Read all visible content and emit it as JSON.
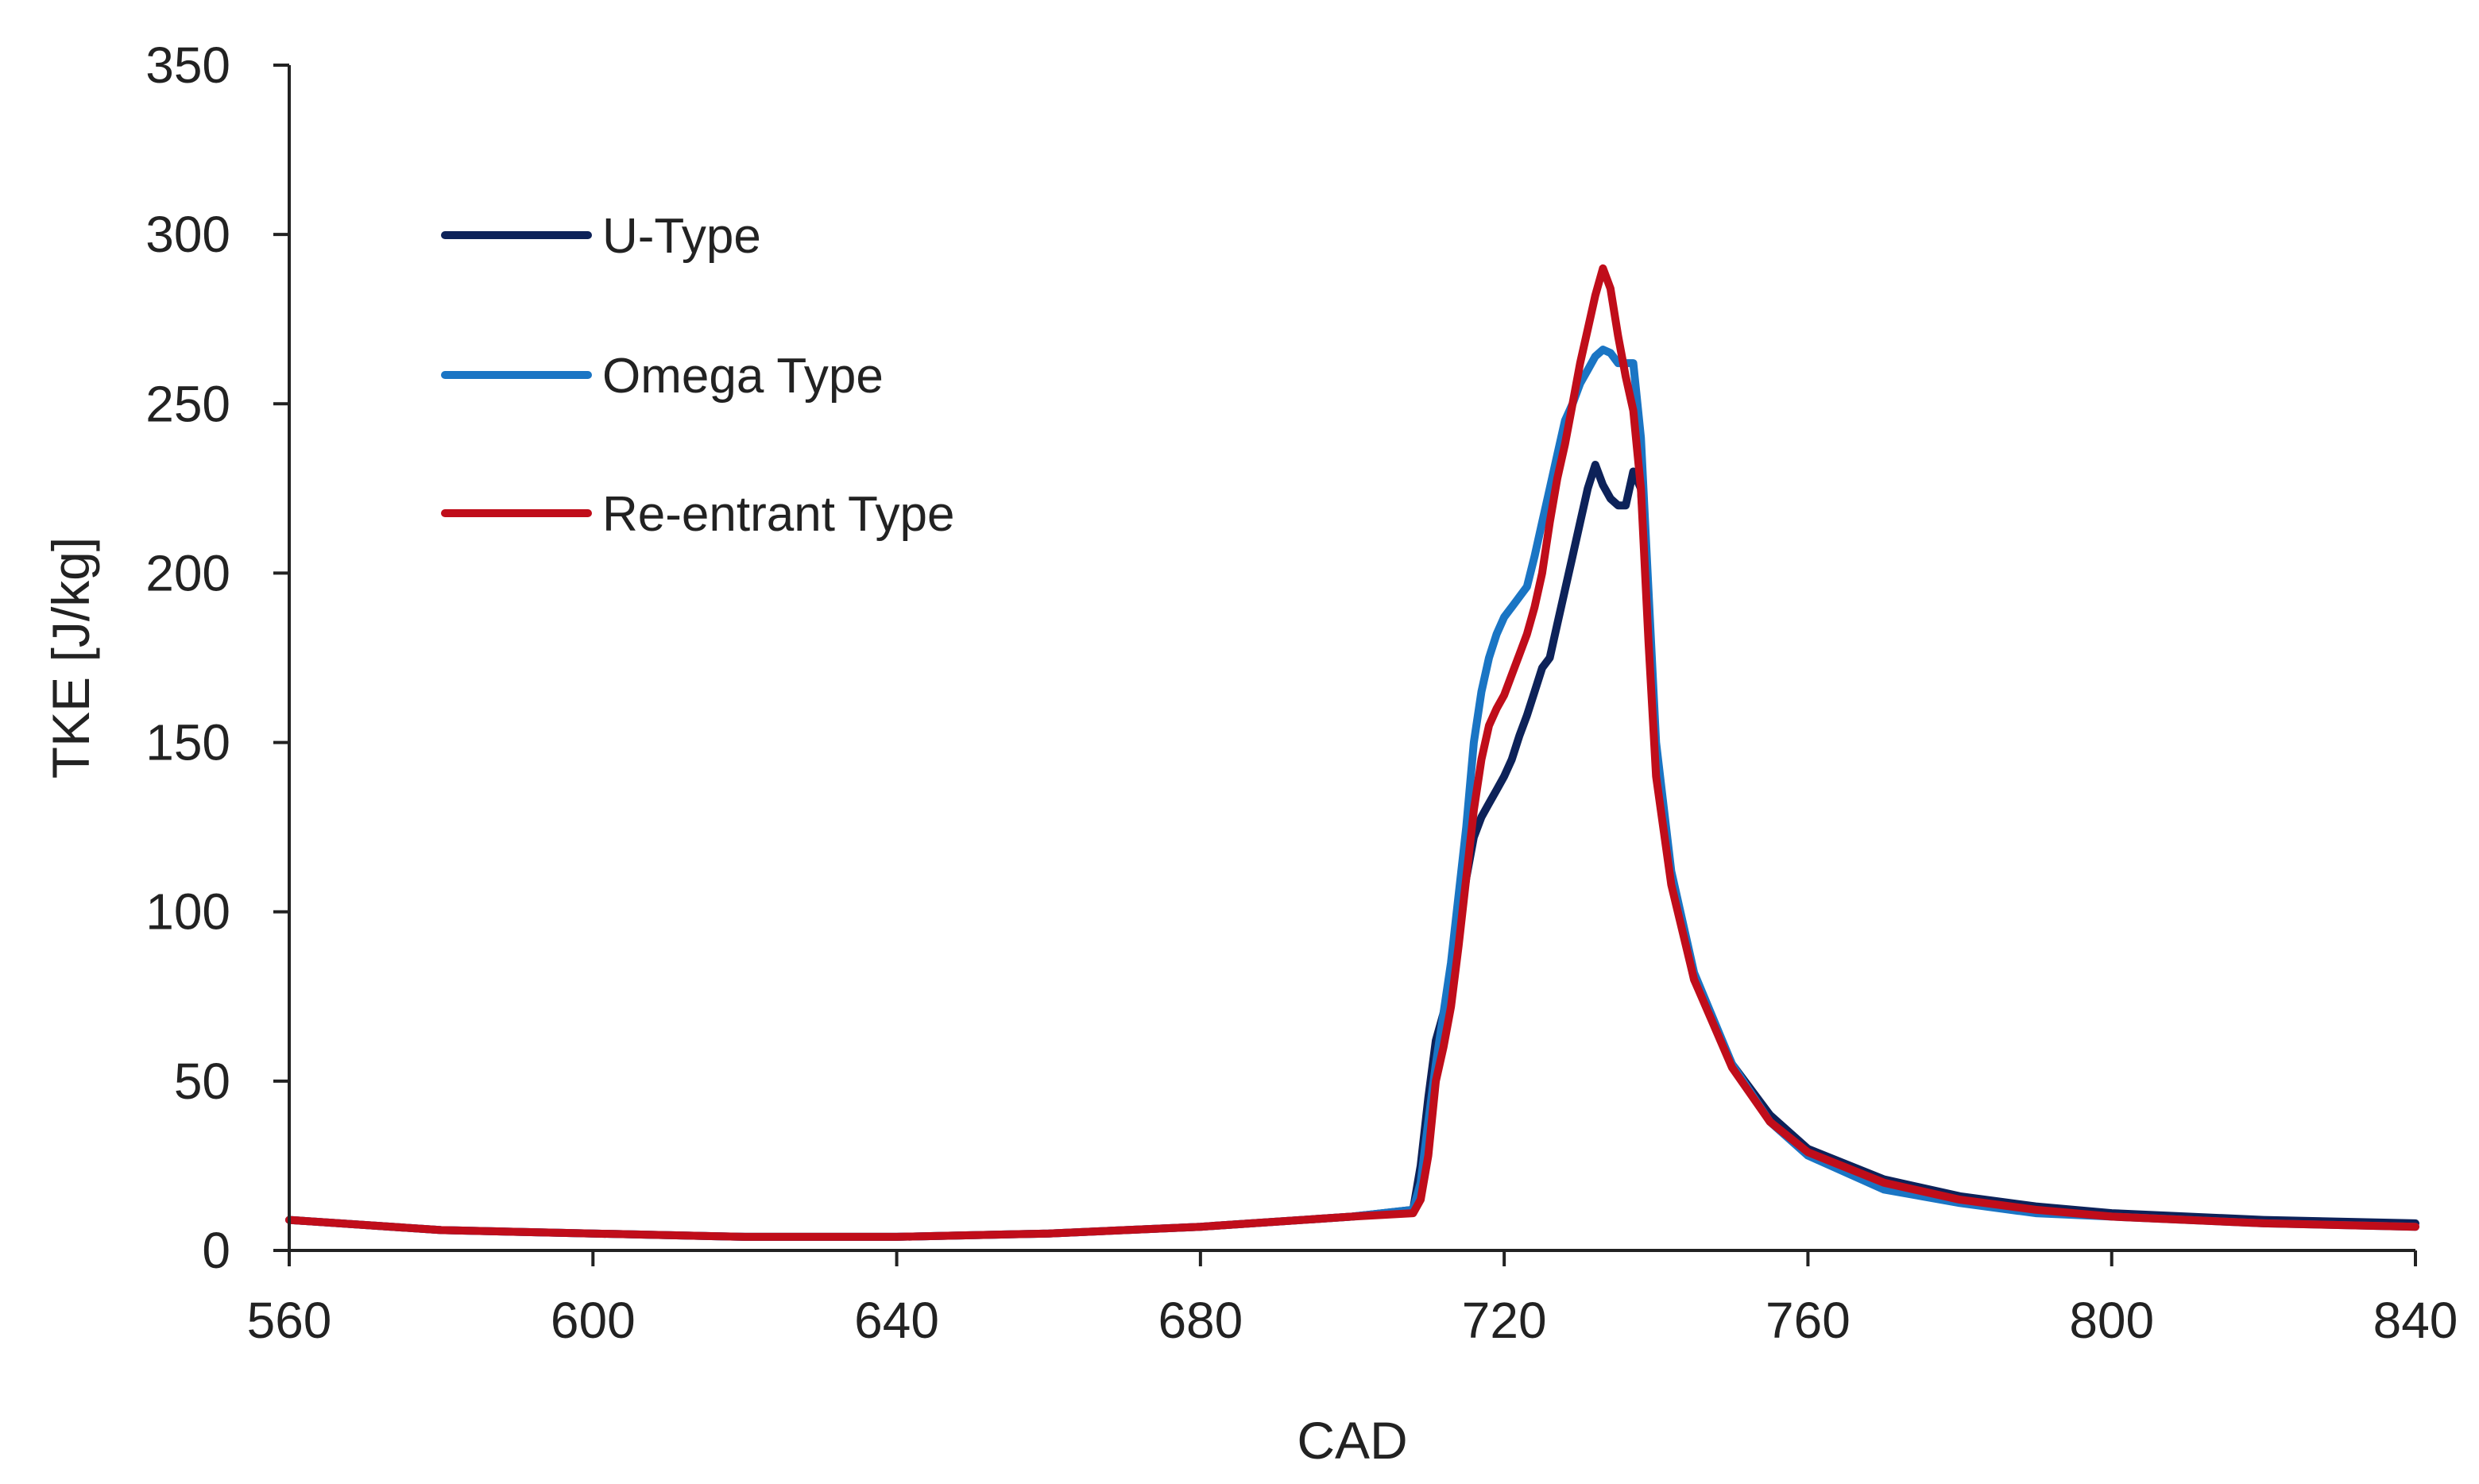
{
  "chart_data": {
    "type": "line",
    "title": "",
    "xlabel": "CAD",
    "ylabel": "TKE [J/kg]",
    "xlim": [
      560,
      840
    ],
    "ylim": [
      0,
      350
    ],
    "x_ticks": [
      560,
      600,
      640,
      680,
      720,
      760,
      800,
      840
    ],
    "y_ticks": [
      0,
      50,
      100,
      150,
      200,
      250,
      300,
      350
    ],
    "grid": false,
    "legend": "upper-left",
    "series": [
      {
        "name": "U-Type",
        "color": "#0d2259",
        "points": [
          [
            560,
            9
          ],
          [
            580,
            6
          ],
          [
            600,
            5
          ],
          [
            620,
            4
          ],
          [
            640,
            4
          ],
          [
            660,
            5
          ],
          [
            680,
            7
          ],
          [
            700,
            10
          ],
          [
            708,
            12
          ],
          [
            709,
            25
          ],
          [
            710,
            45
          ],
          [
            711,
            62
          ],
          [
            712,
            70
          ],
          [
            713,
            80
          ],
          [
            714,
            95
          ],
          [
            715,
            110
          ],
          [
            716,
            122
          ],
          [
            717,
            128
          ],
          [
            718,
            132
          ],
          [
            719,
            136
          ],
          [
            720,
            140
          ],
          [
            721,
            145
          ],
          [
            722,
            152
          ],
          [
            723,
            158
          ],
          [
            724,
            165
          ],
          [
            725,
            172
          ],
          [
            726,
            175
          ],
          [
            727,
            185
          ],
          [
            728,
            195
          ],
          [
            729,
            205
          ],
          [
            730,
            215
          ],
          [
            731,
            225
          ],
          [
            732,
            232
          ],
          [
            733,
            226
          ],
          [
            734,
            222
          ],
          [
            735,
            220
          ],
          [
            736,
            220
          ],
          [
            737,
            230
          ],
          [
            738,
            225
          ],
          [
            739,
            190
          ],
          [
            740,
            145
          ],
          [
            742,
            110
          ],
          [
            745,
            80
          ],
          [
            750,
            55
          ],
          [
            755,
            40
          ],
          [
            760,
            30
          ],
          [
            770,
            21
          ],
          [
            780,
            16
          ],
          [
            790,
            13
          ],
          [
            800,
            11
          ],
          [
            820,
            9
          ],
          [
            840,
            8
          ]
        ]
      },
      {
        "name": "Omega Type",
        "color": "#1a75c4",
        "points": [
          [
            560,
            9
          ],
          [
            580,
            6
          ],
          [
            600,
            5
          ],
          [
            620,
            4
          ],
          [
            640,
            4
          ],
          [
            660,
            5
          ],
          [
            680,
            7
          ],
          [
            700,
            10
          ],
          [
            708,
            12
          ],
          [
            709,
            20
          ],
          [
            710,
            38
          ],
          [
            711,
            55
          ],
          [
            712,
            70
          ],
          [
            713,
            85
          ],
          [
            714,
            105
          ],
          [
            715,
            125
          ],
          [
            716,
            150
          ],
          [
            717,
            165
          ],
          [
            718,
            175
          ],
          [
            719,
            182
          ],
          [
            720,
            187
          ],
          [
            721,
            190
          ],
          [
            722,
            193
          ],
          [
            723,
            196
          ],
          [
            724,
            205
          ],
          [
            725,
            215
          ],
          [
            726,
            225
          ],
          [
            727,
            235
          ],
          [
            728,
            245
          ],
          [
            729,
            250
          ],
          [
            730,
            256
          ],
          [
            731,
            260
          ],
          [
            732,
            264
          ],
          [
            733,
            266
          ],
          [
            734,
            265
          ],
          [
            735,
            262
          ],
          [
            736,
            262
          ],
          [
            737,
            262
          ],
          [
            738,
            240
          ],
          [
            739,
            195
          ],
          [
            740,
            150
          ],
          [
            742,
            112
          ],
          [
            745,
            82
          ],
          [
            750,
            55
          ],
          [
            755,
            38
          ],
          [
            760,
            28
          ],
          [
            770,
            18
          ],
          [
            780,
            14
          ],
          [
            790,
            11
          ],
          [
            800,
            10
          ],
          [
            820,
            8
          ],
          [
            840,
            7
          ]
        ]
      },
      {
        "name": "Re-entrant Type",
        "color": "#c00d1a",
        "points": [
          [
            560,
            9
          ],
          [
            580,
            6
          ],
          [
            600,
            5
          ],
          [
            620,
            4
          ],
          [
            640,
            4
          ],
          [
            660,
            5
          ],
          [
            680,
            7
          ],
          [
            700,
            10
          ],
          [
            708,
            11
          ],
          [
            709,
            15
          ],
          [
            710,
            28
          ],
          [
            711,
            50
          ],
          [
            712,
            60
          ],
          [
            713,
            72
          ],
          [
            714,
            90
          ],
          [
            715,
            110
          ],
          [
            716,
            130
          ],
          [
            717,
            145
          ],
          [
            718,
            155
          ],
          [
            719,
            160
          ],
          [
            720,
            164
          ],
          [
            721,
            170
          ],
          [
            722,
            176
          ],
          [
            723,
            182
          ],
          [
            724,
            190
          ],
          [
            725,
            200
          ],
          [
            726,
            215
          ],
          [
            727,
            228
          ],
          [
            728,
            238
          ],
          [
            729,
            250
          ],
          [
            730,
            262
          ],
          [
            731,
            272
          ],
          [
            732,
            282
          ],
          [
            733,
            290
          ],
          [
            734,
            284
          ],
          [
            735,
            270
          ],
          [
            736,
            258
          ],
          [
            737,
            248
          ],
          [
            738,
            225
          ],
          [
            739,
            180
          ],
          [
            740,
            140
          ],
          [
            742,
            108
          ],
          [
            745,
            80
          ],
          [
            750,
            54
          ],
          [
            755,
            38
          ],
          [
            760,
            29
          ],
          [
            770,
            20
          ],
          [
            780,
            15
          ],
          [
            790,
            12
          ],
          [
            800,
            10
          ],
          [
            820,
            8
          ],
          [
            840,
            7
          ]
        ]
      }
    ]
  }
}
